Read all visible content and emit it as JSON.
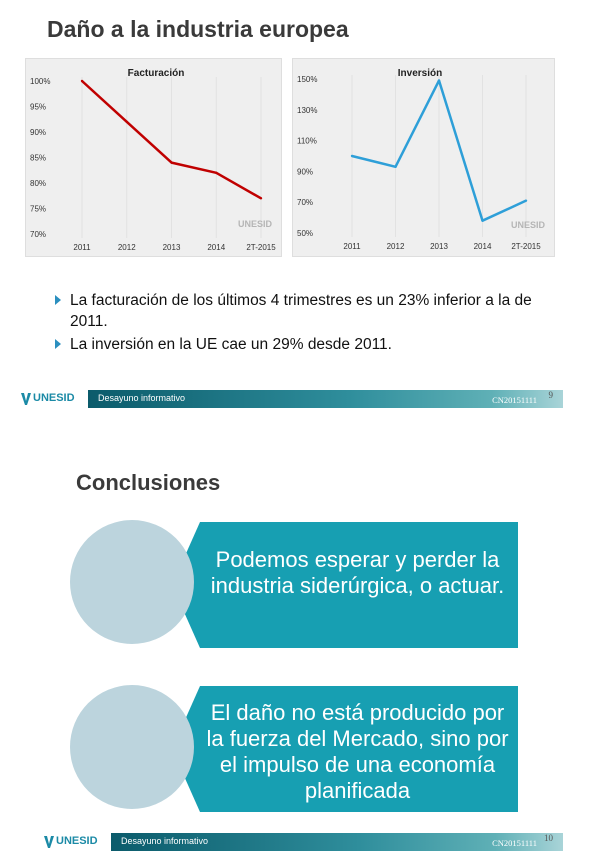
{
  "slide1": {
    "title": "Daño a la industria europea",
    "bullets": [
      "La facturación de los últimos 4 trimestres es un 23% inferior a la de 2011.",
      "La inversión en la UE cae un 29% desde 2011."
    ],
    "footer": {
      "logo": "UNESID",
      "label": "Desayuno informativo",
      "code": "CN20151111",
      "page": "9"
    }
  },
  "slide2": {
    "title": "Conclusiones",
    "items": [
      "Podemos esperar y perder la industria siderúrgica, o actuar.",
      "El daño no está producido por la fuerza del Mercado, sino por el impulso de una economía planificada"
    ],
    "footer": {
      "logo": "UNESID",
      "label": "Desayuno informativo",
      "code": "CN20151111",
      "page": "10"
    }
  },
  "colors": {
    "facturacion_line": "#c00000",
    "inversion_line": "#2e9fd8",
    "conclusion_arrow": "#179fb2",
    "conclusion_circle": "#bcd4dd"
  },
  "chart_data": [
    {
      "type": "line",
      "title": "Facturación",
      "watermark": "UNESID",
      "categories": [
        "2011",
        "2012",
        "2013",
        "2014",
        "2T-2015"
      ],
      "values": [
        100,
        92,
        84,
        82,
        77
      ],
      "ylim": [
        70,
        100
      ],
      "yticks": [
        "70%",
        "75%",
        "80%",
        "85%",
        "90%",
        "95%",
        "100%"
      ],
      "grid": false
    },
    {
      "type": "line",
      "title": "Inversión",
      "watermark": "UNESID",
      "categories": [
        "2011",
        "2012",
        "2013",
        "2014",
        "2T-2015"
      ],
      "values": [
        100,
        93,
        149,
        58,
        71
      ],
      "ylim": [
        50,
        150
      ],
      "yticks": [
        "50%",
        "70%",
        "90%",
        "110%",
        "130%",
        "150%"
      ],
      "grid": false
    }
  ]
}
